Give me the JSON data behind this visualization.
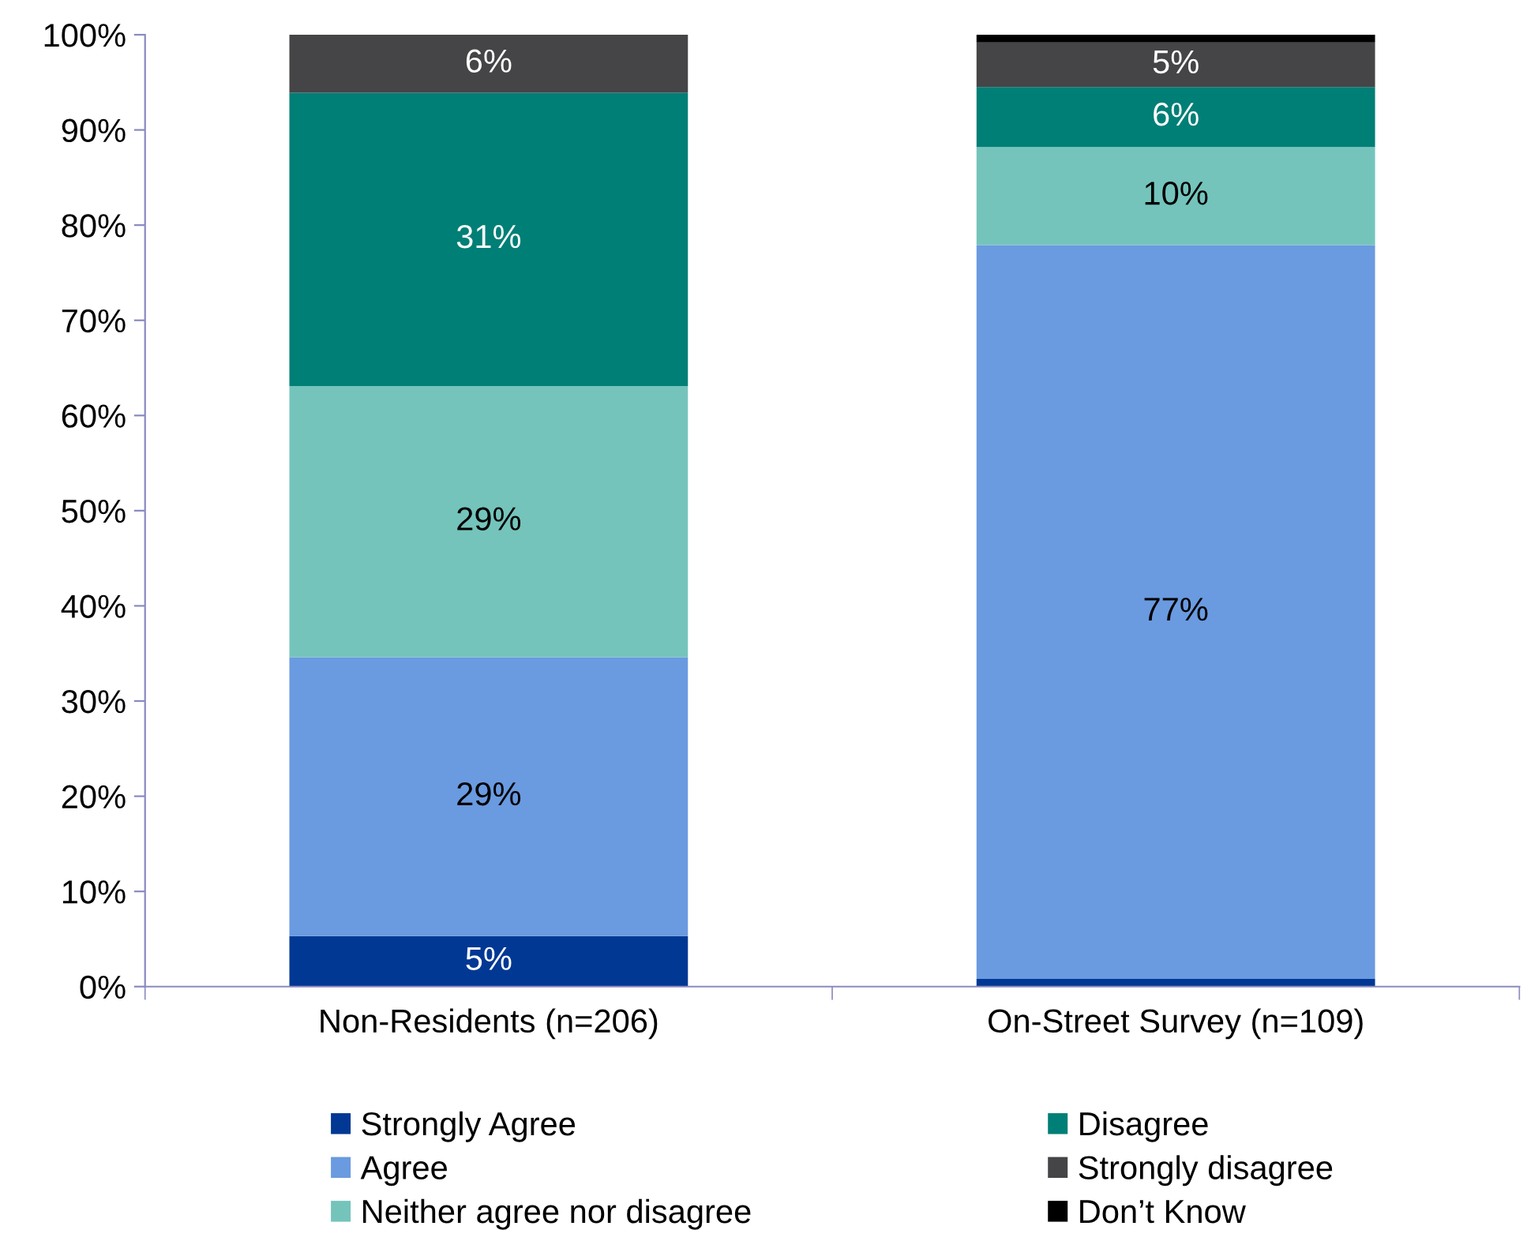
{
  "chart_data": {
    "type": "bar",
    "stacked": true,
    "categories": [
      "Non-Residents (n=206)",
      "On-Street Survey (n=109)"
    ],
    "series": [
      {
        "name": "Strongly Agree",
        "color": "#003893",
        "values": [
          5.3,
          0.8
        ],
        "value_labels": [
          "5%",
          null
        ]
      },
      {
        "name": "Agree",
        "color": "#6a9ae0",
        "values": [
          29.3,
          77.1
        ],
        "value_labels": [
          "29%",
          "77%"
        ]
      },
      {
        "name": "Neither agree nor disagree",
        "color": "#74c4bc",
        "values": [
          28.5,
          10.3
        ],
        "value_labels": [
          "29%",
          "10%"
        ]
      },
      {
        "name": "Disagree",
        "color": "#007f76",
        "values": [
          30.8,
          6.3
        ],
        "value_labels": [
          "31%",
          "6%"
        ]
      },
      {
        "name": "Strongly disagree",
        "color": "#454547",
        "values": [
          6.1,
          4.7
        ],
        "value_labels": [
          "6%",
          "5%"
        ]
      },
      {
        "name": "Don’t Know",
        "color": "#000000",
        "values": [
          0,
          0.8
        ],
        "value_labels": [
          null,
          null
        ]
      }
    ],
    "ylim": [
      0,
      100
    ],
    "yticks": [
      {
        "value": 0,
        "label": "0%"
      },
      {
        "value": 10,
        "label": "10%"
      },
      {
        "value": 20,
        "label": "20%"
      },
      {
        "value": 30,
        "label": "30%"
      },
      {
        "value": 40,
        "label": "40%"
      },
      {
        "value": 50,
        "label": "50%"
      },
      {
        "value": 60,
        "label": "60%"
      },
      {
        "value": 70,
        "label": "70%"
      },
      {
        "value": 80,
        "label": "80%"
      },
      {
        "value": 90,
        "label": "90%"
      },
      {
        "value": 100,
        "label": "100%"
      }
    ],
    "grid": false,
    "legend": "bottom"
  }
}
